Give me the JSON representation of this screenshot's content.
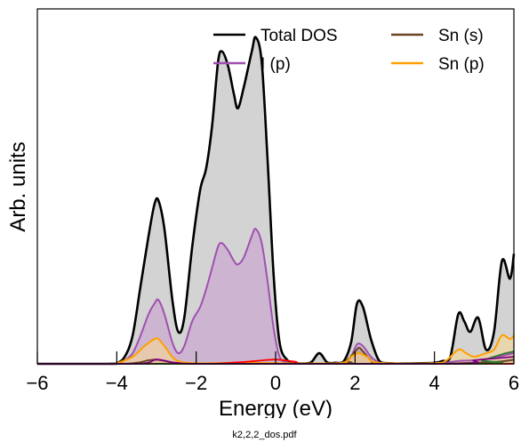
{
  "caption": "k2,2,2_dos.pdf",
  "chart_data": {
    "type": "area",
    "xlabel": "Energy (eV)",
    "ylabel": "Arb. units",
    "xlim": [
      -6,
      6
    ],
    "ylim": [
      0,
      1.0
    ],
    "xticks": [
      -6,
      -4,
      -2,
      0,
      2,
      4,
      6
    ],
    "xtick_labels": [
      "−6",
      "−4",
      "−2",
      "0",
      "2",
      "4",
      "6"
    ],
    "grid": false,
    "legend_position": "top-right",
    "series": [
      {
        "name": "Total DOS",
        "color": "#000000",
        "fill": "#d3d3d3",
        "x": [
          -6,
          -4.2,
          -4.0,
          -3.8,
          -3.6,
          -3.4,
          -3.2,
          -3.05,
          -2.95,
          -2.8,
          -2.6,
          -2.45,
          -2.3,
          -2.1,
          -1.9,
          -1.75,
          -1.6,
          -1.45,
          -1.35,
          -1.2,
          -1.05,
          -0.95,
          -0.8,
          -0.6,
          -0.5,
          -0.35,
          -0.2,
          -0.05,
          0.1,
          0.3,
          0.5,
          0.7,
          0.9,
          1.1,
          1.3,
          1.5,
          1.7,
          1.9,
          2.05,
          2.2,
          2.4,
          2.6,
          2.8,
          3.2,
          3.8,
          4.0,
          4.2,
          4.4,
          4.6,
          4.75,
          4.9,
          5.1,
          5.3,
          5.5,
          5.7,
          5.9,
          6.0
        ],
        "y": [
          0,
          0,
          0.002,
          0.02,
          0.08,
          0.22,
          0.36,
          0.45,
          0.46,
          0.38,
          0.18,
          0.09,
          0.13,
          0.33,
          0.49,
          0.55,
          0.67,
          0.85,
          0.88,
          0.84,
          0.76,
          0.72,
          0.78,
          0.88,
          0.92,
          0.85,
          0.57,
          0.25,
          0.06,
          0.01,
          0.002,
          0.001,
          0.005,
          0.03,
          0.004,
          0.003,
          0.005,
          0.06,
          0.17,
          0.16,
          0.07,
          0.01,
          0.002,
          0.001,
          0.002,
          0.003,
          0.008,
          0.02,
          0.14,
          0.12,
          0.09,
          0.13,
          0.04,
          0.09,
          0.29,
          0.24,
          0.31
        ]
      },
      {
        "name": "I (p)",
        "color": "#a050b0",
        "fill": "#caa4cf",
        "x": [
          -6,
          -4.2,
          -4.0,
          -3.8,
          -3.6,
          -3.4,
          -3.2,
          -3.05,
          -2.95,
          -2.8,
          -2.6,
          -2.45,
          -2.3,
          -2.1,
          -1.9,
          -1.75,
          -1.6,
          -1.45,
          -1.35,
          -1.2,
          -1.05,
          -0.95,
          -0.8,
          -0.6,
          -0.5,
          -0.35,
          -0.2,
          -0.05,
          0.1,
          0.3,
          0.5,
          1.5,
          1.7,
          1.9,
          2.05,
          2.2,
          2.4,
          2.6,
          2.8,
          3.2,
          4.0,
          4.2,
          4.6,
          5.0,
          5.4,
          5.6,
          5.8,
          6.0
        ],
        "y": [
          0,
          0,
          0.001,
          0.01,
          0.03,
          0.08,
          0.14,
          0.17,
          0.18,
          0.14,
          0.06,
          0.03,
          0.05,
          0.12,
          0.16,
          0.21,
          0.27,
          0.33,
          0.34,
          0.32,
          0.29,
          0.28,
          0.3,
          0.36,
          0.38,
          0.34,
          0.23,
          0.1,
          0.02,
          0.004,
          0.001,
          0.001,
          0.002,
          0.02,
          0.055,
          0.05,
          0.02,
          0.004,
          0.001,
          0.001,
          0.001,
          0.002,
          0.008,
          0.01,
          0.015,
          0.02,
          0.025,
          0.03
        ]
      },
      {
        "name": "Sn (s)",
        "color": "#6b4423",
        "fill": "#b8a090",
        "x": [
          -6,
          -4.0,
          -3.5,
          -3.2,
          -3.0,
          -2.8,
          -2.5,
          -2.0,
          1.6,
          1.8,
          2.0,
          2.1,
          2.2,
          2.4,
          2.6,
          4.0,
          5.0,
          5.6,
          5.9,
          6.0
        ],
        "y": [
          0,
          0,
          0.003,
          0.01,
          0.012,
          0.008,
          0.002,
          0.0,
          0.0,
          0.01,
          0.035,
          0.045,
          0.035,
          0.01,
          0.0,
          0.0,
          0.003,
          0.006,
          0.01,
          0.012
        ]
      },
      {
        "name": "Sn (p)",
        "color": "#ffa000",
        "fill": "#f5d59a",
        "x": [
          -6,
          -4.2,
          -4.0,
          -3.6,
          -3.3,
          -3.05,
          -2.95,
          -2.8,
          -2.5,
          -2.0,
          -1.0,
          0,
          1.6,
          1.9,
          2.1,
          2.3,
          2.6,
          4.0,
          4.3,
          4.6,
          4.8,
          5.0,
          5.3,
          5.5,
          5.7,
          5.9,
          6.0
        ],
        "y": [
          0,
          0,
          0.002,
          0.02,
          0.05,
          0.07,
          0.07,
          0.05,
          0.01,
          0.002,
          0.003,
          0.002,
          0.002,
          0.02,
          0.03,
          0.02,
          0.003,
          0.002,
          0.01,
          0.04,
          0.03,
          0.02,
          0.03,
          0.04,
          0.08,
          0.07,
          0.08
        ]
      }
    ],
    "extra_curves": [
      {
        "color": "#ff0000",
        "x": [
          -6,
          -2.0,
          -1.0,
          -0.5,
          0,
          0.5,
          1.0,
          6.0
        ],
        "y": [
          0,
          0,
          0.004,
          0.008,
          0.012,
          0.006,
          0,
          0
        ]
      },
      {
        "color": "#2e7d32",
        "x": [
          -6,
          4.8,
          5.2,
          5.5,
          5.8,
          6.0
        ],
        "y": [
          0,
          0,
          0.01,
          0.02,
          0.03,
          0.035
        ]
      },
      {
        "color": "#800080",
        "x": [
          -6,
          -3.5,
          -3.0,
          -2.5,
          -1.5,
          4.5,
          5.0,
          5.5,
          6.0
        ],
        "y": [
          0,
          0,
          0.012,
          0.003,
          0,
          0,
          0.01,
          0.015,
          0.02
        ]
      }
    ],
    "legend": [
      {
        "label": "Total DOS",
        "color": "#000000"
      },
      {
        "label": "Sn (s)",
        "color": "#6b4423"
      },
      {
        "label": "I (p)",
        "color": "#a050b0"
      },
      {
        "label": "Sn (p)",
        "color": "#ffa000"
      }
    ]
  }
}
